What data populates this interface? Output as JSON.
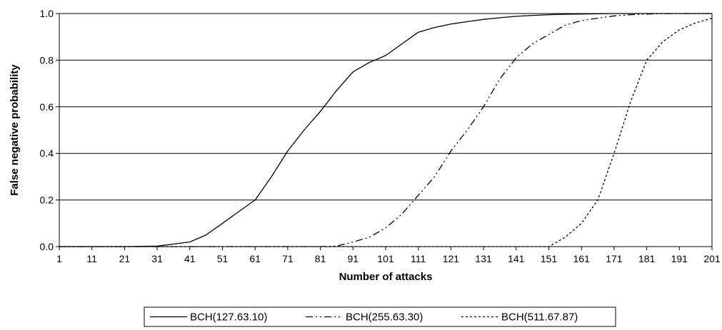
{
  "chart_data": {
    "type": "line",
    "title": "",
    "xlabel": "Number of attacks",
    "ylabel": "False negative probability",
    "xlim": [
      1,
      201
    ],
    "ylim": [
      0,
      1
    ],
    "x_ticks": [
      "1",
      "11",
      "21",
      "31",
      "41",
      "51",
      "61",
      "71",
      "81",
      "91",
      "101",
      "111",
      "121",
      "131",
      "141",
      "151",
      "161",
      "171",
      "181",
      "191",
      "201"
    ],
    "y_ticks": [
      "0.0",
      "0.2",
      "0.4",
      "0.6",
      "0.8",
      "1.0"
    ],
    "grid": "horizontal",
    "legend_position": "bottom",
    "x": [
      1,
      11,
      21,
      31,
      41,
      46,
      51,
      56,
      61,
      66,
      71,
      76,
      81,
      86,
      91,
      96,
      101,
      106,
      111,
      116,
      121,
      126,
      131,
      136,
      141,
      146,
      151,
      156,
      161,
      166,
      171,
      176,
      181,
      186,
      191,
      196,
      201
    ],
    "series": [
      {
        "name": "BCH(127.63.10)",
        "style": "solid",
        "values": [
          0,
          0,
          0,
          0.002,
          0.02,
          0.05,
          0.1,
          0.15,
          0.2,
          0.3,
          0.41,
          0.5,
          0.58,
          0.67,
          0.75,
          0.79,
          0.82,
          0.87,
          0.92,
          0.94,
          0.955,
          0.965,
          0.975,
          0.982,
          0.988,
          0.992,
          0.995,
          0.997,
          0.998,
          0.999,
          1.0,
          1.0,
          1.0,
          1.0,
          1.0,
          1.0,
          1.0
        ]
      },
      {
        "name": "BCH(255.63.30)",
        "style": "dash-dot-dot",
        "values": [
          0,
          0,
          0,
          0,
          0,
          0,
          0,
          0,
          0,
          0,
          0,
          0,
          0,
          0.002,
          0.02,
          0.04,
          0.08,
          0.14,
          0.22,
          0.3,
          0.41,
          0.5,
          0.6,
          0.72,
          0.81,
          0.87,
          0.91,
          0.95,
          0.97,
          0.98,
          0.99,
          0.995,
          0.998,
          1.0,
          1.0,
          1.0,
          1.0
        ]
      },
      {
        "name": "BCH(511.67.87)",
        "style": "dotted",
        "values": [
          0,
          0,
          0,
          0,
          0,
          0,
          0,
          0,
          0,
          0,
          0,
          0,
          0,
          0,
          0,
          0,
          0,
          0,
          0,
          0,
          0,
          0,
          0,
          0,
          0,
          0,
          0,
          0.04,
          0.1,
          0.2,
          0.4,
          0.62,
          0.8,
          0.88,
          0.93,
          0.96,
          0.98
        ]
      }
    ]
  }
}
